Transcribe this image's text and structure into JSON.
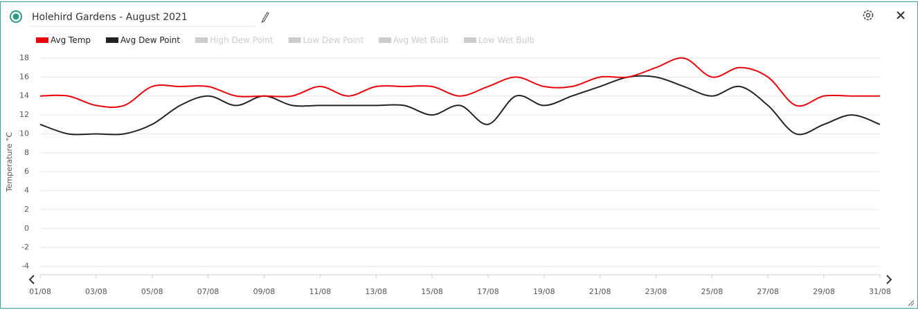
{
  "header": {
    "title": "Holehird Gardens - August 2021"
  },
  "chart_data": {
    "type": "line",
    "y_label": "Temperature °C",
    "categories": [
      "01/08",
      null,
      "03/08",
      null,
      "05/08",
      null,
      "07/08",
      null,
      "09/08",
      null,
      "11/08",
      null,
      "13/08",
      null,
      "15/08",
      null,
      "17/08",
      null,
      "19/08",
      null,
      "21/08",
      null,
      "23/08",
      null,
      "25/08",
      null,
      "27/08",
      null,
      "29/08",
      null,
      "31/08"
    ],
    "series": [
      {
        "name": "Avg Temp",
        "color": "#e8000b",
        "values": [
          14,
          14,
          13,
          13,
          15,
          15,
          15,
          14,
          14,
          14,
          15,
          14,
          15,
          15,
          15,
          14,
          15,
          16,
          15,
          15,
          16,
          16,
          17,
          18,
          16,
          17,
          16,
          13,
          14,
          14,
          14
        ]
      },
      {
        "name": "Avg Dew Point",
        "color": "#222222",
        "values": [
          11,
          10,
          10,
          10,
          11,
          13,
          14,
          13,
          14,
          13,
          13,
          13,
          13,
          13,
          12,
          13,
          11,
          14,
          13,
          14,
          15,
          16,
          16,
          15,
          14,
          15,
          13,
          10,
          11,
          12,
          11
        ]
      },
      {
        "name": "High Dew Point",
        "color": "#cccccc",
        "hidden": true
      },
      {
        "name": "Low Dew Point",
        "color": "#cccccc",
        "hidden": true
      },
      {
        "name": "Avg Wet Bulb",
        "color": "#cccccc",
        "hidden": true
      },
      {
        "name": "Low Wet Bulb",
        "color": "#cccccc",
        "hidden": true
      }
    ],
    "ylim": [
      -4,
      18
    ],
    "yticks": [
      -4,
      -2,
      0,
      2,
      4,
      6,
      8,
      10,
      12,
      14,
      16,
      18
    ],
    "grid": true
  }
}
